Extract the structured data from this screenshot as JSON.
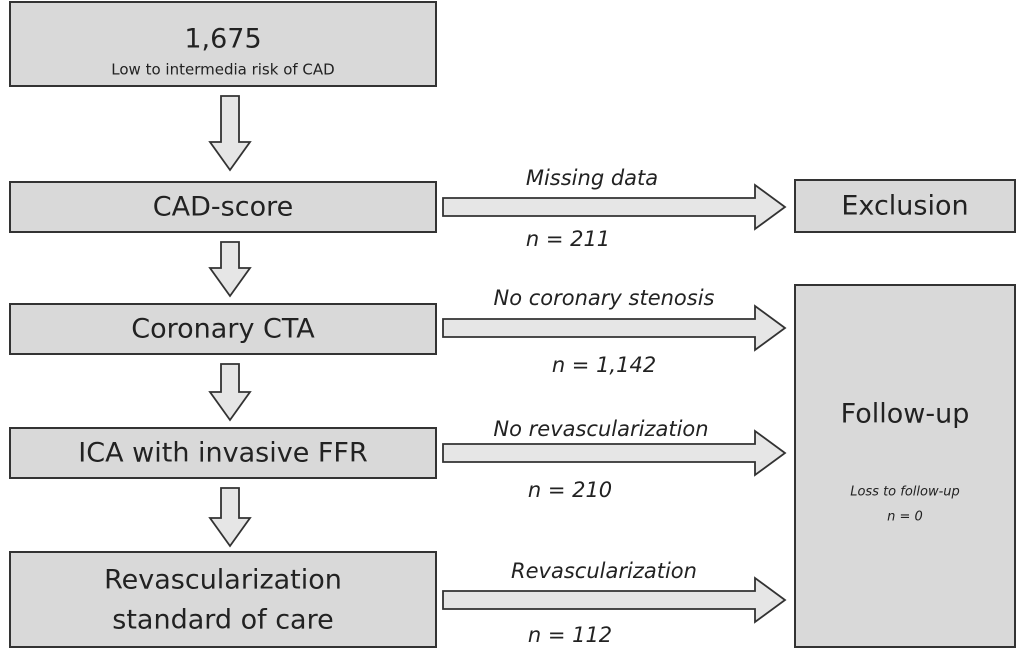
{
  "nodes": [
    {
      "title": "1,675",
      "subtitle": "Low to intermedia risk of CAD"
    },
    {
      "label": "CAD-score"
    },
    {
      "label": "Coronary CTA"
    },
    {
      "label": "ICA with invasive FFR"
    },
    {
      "lines": [
        "Revascularization",
        "standard of care"
      ]
    },
    {
      "label": "Exclusion"
    },
    {
      "label": "Follow-up",
      "note": "Loss to follow-up",
      "count": "n = 0"
    }
  ],
  "edges": [
    {
      "label": "Missing data",
      "count": "n = 211"
    },
    {
      "label": "No coronary stenosis",
      "count": "n = 1,142"
    },
    {
      "label": "No revascularization",
      "count": "n = 210"
    },
    {
      "label": "Revascularization",
      "count": "n = 112"
    }
  ]
}
